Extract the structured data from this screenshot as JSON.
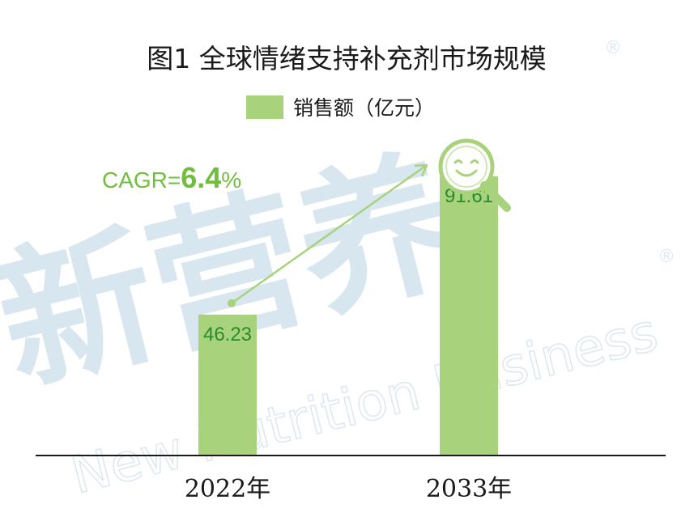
{
  "chart_data": {
    "type": "bar",
    "title": "图1  全球情绪支持补充剂市场规模",
    "categories": [
      "2022年",
      "2033年"
    ],
    "series": [
      {
        "name": "销售额（亿元）",
        "values": [
          46.23,
          91.61
        ]
      }
    ],
    "value_labels": [
      "46.23",
      "91.61"
    ],
    "ylim": [
      0,
      125
    ],
    "grid": false,
    "legend_position": "top-center",
    "annotation": {
      "prefix": "CAGR=",
      "value": "6.4",
      "suffix": "%"
    },
    "colors": {
      "bar": "#a8d27c",
      "value_label": "#2a8a2e",
      "arrow": "#a8d27c",
      "cagr": "#6fbf3d",
      "axis": "#1a1a1a"
    }
  },
  "watermark": {
    "chinese": "新营养",
    "english": "New Nutrition Business",
    "mark": "®"
  },
  "icons": [
    "smiley-magnifier-icon"
  ]
}
